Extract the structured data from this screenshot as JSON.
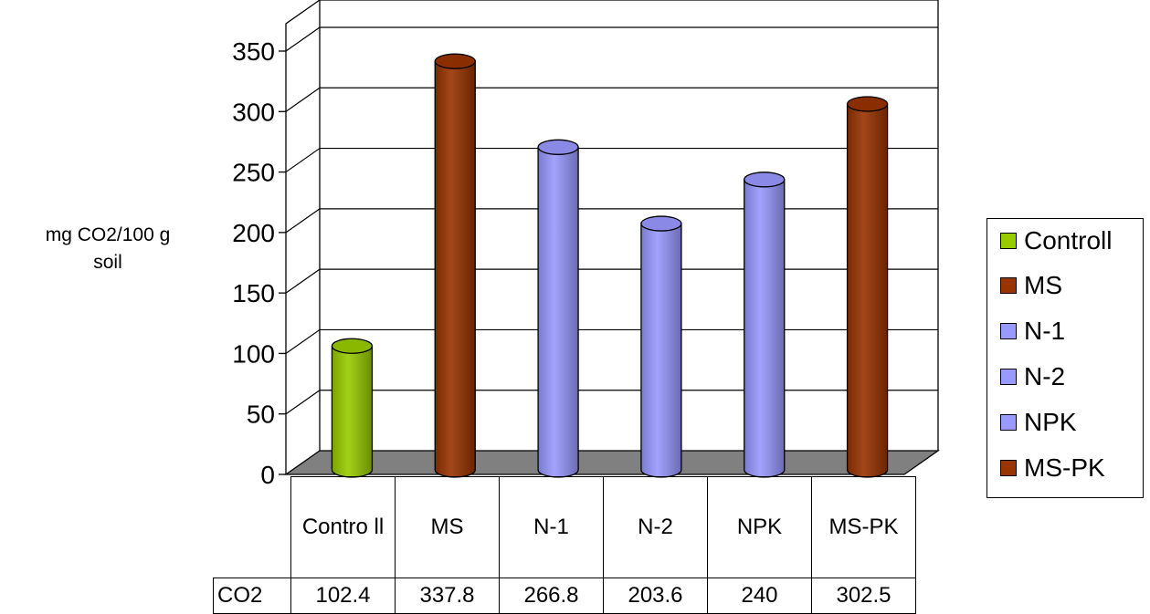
{
  "chart_data": {
    "type": "bar",
    "title": "",
    "xlabel": "",
    "ylabel_lines": [
      "mg CO2/100 g",
      "soil"
    ],
    "categories": [
      "Controll",
      "MS",
      "N-1",
      "N-2",
      "NPK",
      "MS-PK"
    ],
    "table_header_labels": [
      "Contro ll",
      "MS",
      "N-1",
      "N-2",
      "NPK",
      "MS-PK"
    ],
    "series": [
      {
        "name": "CO2",
        "values": [
          102.4,
          337.8,
          266.8,
          203.6,
          240,
          302.5
        ]
      }
    ],
    "value_labels": [
      "102.4",
      "337.8",
      "266.8",
      "203.6",
      "240",
      "302.5"
    ],
    "bar_colors": [
      "#99cc00",
      "#993300",
      "#9999ff",
      "#9999ff",
      "#9999ff",
      "#993300"
    ],
    "ylim": [
      0,
      350
    ],
    "yticks": [
      "0",
      "50",
      "100",
      "150",
      "200",
      "250",
      "300",
      "350"
    ],
    "grid": true,
    "legend_position": "right",
    "legend": [
      {
        "label": "Controll",
        "color": "#99cc00"
      },
      {
        "label": "MS",
        "color": "#993300"
      },
      {
        "label": "N-1",
        "color": "#9999ff"
      },
      {
        "label": "N-2",
        "color": "#9999ff"
      },
      {
        "label": "NPK",
        "color": "#9999ff"
      },
      {
        "label": "MS-PK",
        "color": "#993300"
      }
    ]
  }
}
